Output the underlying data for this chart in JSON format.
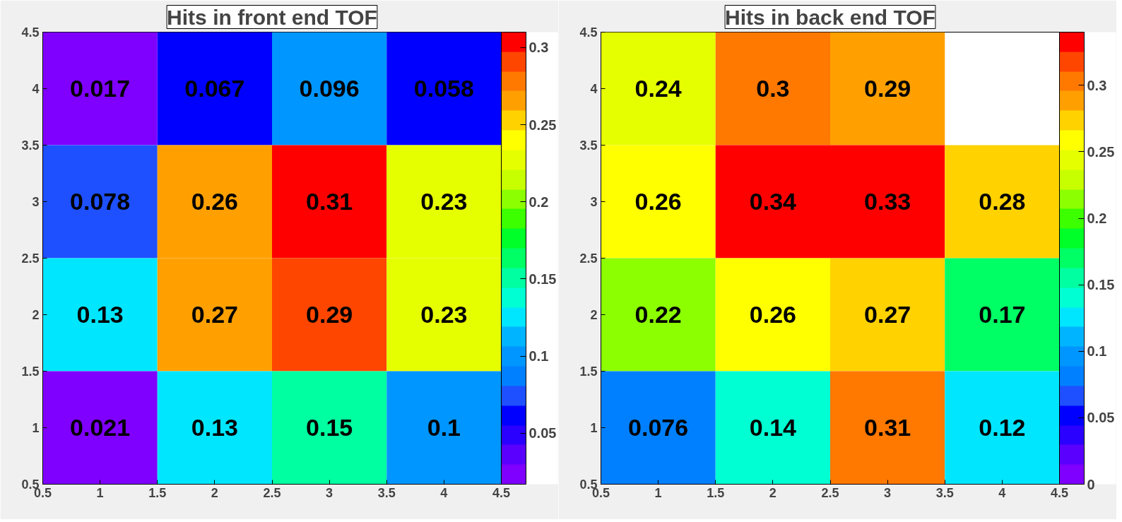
{
  "chart_data": [
    {
      "type": "heatmap",
      "title": "Hits in front end TOF",
      "x": [
        1,
        2,
        3,
        4
      ],
      "y": [
        4,
        3,
        2,
        1
      ],
      "cells": [
        [
          0.017,
          0.067,
          0.096,
          0.058
        ],
        [
          0.078,
          0.26,
          0.31,
          0.23
        ],
        [
          0.13,
          0.27,
          0.29,
          0.23
        ],
        [
          0.021,
          0.13,
          0.15,
          0.1
        ]
      ],
      "xlim": [
        0.5,
        4.5
      ],
      "xticks": [
        0.5,
        1,
        1.5,
        2,
        2.5,
        3,
        3.5,
        4,
        4.5
      ],
      "ylim": [
        0.5,
        4.5
      ],
      "yticks": [
        0.5,
        1,
        1.5,
        2,
        2.5,
        3,
        3.5,
        4,
        4.5
      ],
      "clim": [
        0.017,
        0.31
      ],
      "cticks": [
        0.05,
        0.1,
        0.15,
        0.2,
        0.25,
        0.3
      ],
      "data_labels": true
    },
    {
      "type": "heatmap",
      "title": "Hits in back end TOF",
      "x": [
        1,
        2,
        3,
        4
      ],
      "y": [
        4,
        3,
        2,
        1
      ],
      "cells": [
        [
          0.24,
          0.3,
          0.29,
          null
        ],
        [
          0.26,
          0.34,
          0.33,
          0.28
        ],
        [
          0.22,
          0.26,
          0.27,
          0.17
        ],
        [
          0.076,
          0.14,
          0.31,
          0.12
        ]
      ],
      "xlim": [
        0.5,
        4.5
      ],
      "xticks": [
        0.5,
        1,
        1.5,
        2,
        2.5,
        3,
        3.5,
        4,
        4.5
      ],
      "ylim": [
        0.5,
        4.5
      ],
      "yticks": [
        0.5,
        1,
        1.5,
        2,
        2.5,
        3,
        3.5,
        4,
        4.5
      ],
      "clim": [
        0,
        0.34
      ],
      "cticks": [
        0,
        0.05,
        0.1,
        0.15,
        0.2,
        0.25,
        0.3
      ],
      "data_labels": true
    }
  ]
}
